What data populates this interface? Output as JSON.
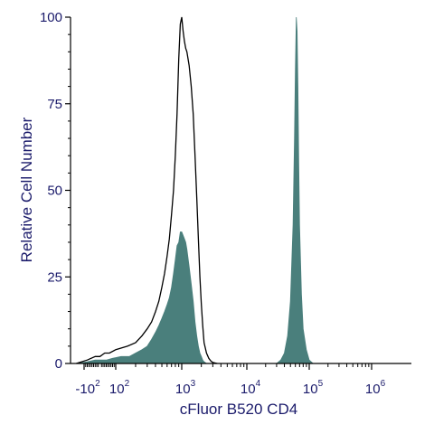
{
  "chart_data": {
    "type": "area",
    "xlabel": "cFluor B520 CD4",
    "ylabel": "Relative Cell Number",
    "x_scale": "biexponential",
    "ylim": [
      0,
      100
    ],
    "y_ticks": [
      0,
      25,
      50,
      75,
      100
    ],
    "x_ticks": [
      {
        "base": "-10",
        "exp": "2",
        "value": -100
      },
      {
        "base": "10",
        "exp": "2",
        "value": 100
      },
      {
        "base": "10",
        "exp": "3",
        "value": 1000
      },
      {
        "base": "10",
        "exp": "4",
        "value": 10000
      },
      {
        "base": "10",
        "exp": "5",
        "value": 100000
      },
      {
        "base": "10",
        "exp": "6",
        "value": 1000000
      }
    ],
    "colors": {
      "filled": "#4a7f7c",
      "outline": "#000000",
      "axis": "#000000",
      "text": "#1b1b6b"
    },
    "series": [
      {
        "style": "outline",
        "x": [
          -150,
          -80,
          -30,
          0,
          30,
          60,
          100,
          150,
          200,
          250,
          300,
          350,
          400,
          450,
          500,
          550,
          600,
          650,
          700,
          750,
          800,
          850,
          900,
          950,
          1000,
          1050,
          1100,
          1150,
          1200,
          1300,
          1400,
          1500,
          1600,
          1700,
          1800,
          1900,
          2000,
          2100,
          2200,
          2400,
          2600,
          2800,
          3000,
          3500
        ],
        "values": [
          0,
          1,
          2,
          2,
          3,
          3,
          4,
          5,
          6,
          8,
          10,
          12,
          15,
          18,
          22,
          26,
          31,
          36,
          43,
          50,
          60,
          72,
          88,
          98,
          100,
          96,
          93,
          91,
          90,
          86,
          80,
          72,
          60,
          48,
          36,
          25,
          17,
          11,
          6,
          3,
          1.5,
          0.7,
          0.3,
          0
        ]
      },
      {
        "style": "filled",
        "x": [
          -150,
          -80,
          -30,
          0,
          40,
          80,
          120,
          160,
          200,
          250,
          300,
          350,
          400,
          450,
          500,
          550,
          600,
          650,
          700,
          750,
          800,
          850,
          900,
          950,
          1000,
          1050,
          1100,
          1150,
          1200,
          1300,
          1400,
          1500,
          1600,
          1700,
          1800,
          1900,
          2000,
          2100,
          2200,
          2400
        ],
        "values": [
          0,
          0.5,
          1,
          1,
          1,
          1.5,
          2,
          2,
          3,
          4,
          5,
          7,
          9,
          11,
          13,
          15,
          17,
          19,
          22,
          26,
          30,
          34,
          35,
          38,
          38,
          37,
          36,
          35,
          33,
          28,
          23,
          18,
          12,
          8,
          5,
          3,
          2,
          1,
          0.5,
          0
        ]
      },
      {
        "style": "filled",
        "x": [
          30000,
          35000,
          40000,
          45000,
          50000,
          55000,
          58000,
          60000,
          62000,
          64000,
          66000,
          68000,
          70000,
          75000,
          80000,
          90000,
          100000,
          115000
        ],
        "values": [
          0,
          1,
          3,
          8,
          18,
          40,
          65,
          85,
          100,
          96,
          80,
          58,
          40,
          20,
          10,
          4,
          1,
          0
        ]
      }
    ]
  }
}
